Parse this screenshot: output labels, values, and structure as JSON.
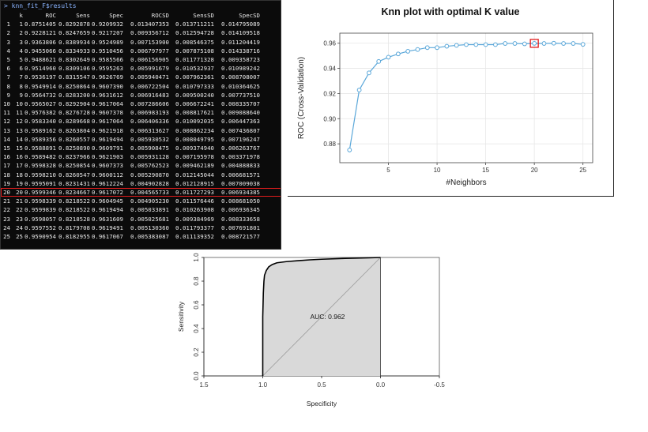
{
  "console": {
    "prompt": "> knn_fit_F$results",
    "columns": [
      "k",
      "ROC",
      "Sens",
      "Spec",
      "ROCSD",
      "SensSD",
      "SpecSD"
    ],
    "highlight_row": 20,
    "rows": [
      [
        "1",
        "1",
        "0.8751405",
        "0.8292878",
        "0.9209932",
        "0.013407353",
        "0.013711211",
        "0.014795089"
      ],
      [
        "2",
        "2",
        "0.9228121",
        "0.8247659",
        "0.9217207",
        "0.009356712",
        "0.012594728",
        "0.014109518"
      ],
      [
        "3",
        "3",
        "0.9363806",
        "0.8389934",
        "0.9524989",
        "0.007153900",
        "0.008546375",
        "0.011204419"
      ],
      [
        "4",
        "4",
        "0.9455066",
        "0.8334933",
        "0.9510456",
        "0.006797977",
        "0.007875108",
        "0.014338716"
      ],
      [
        "5",
        "5",
        "0.9488621",
        "0.8302649",
        "0.9585566",
        "0.006156905",
        "0.011771328",
        "0.009358723"
      ],
      [
        "6",
        "6",
        "0.9514960",
        "0.8309106",
        "0.9595263",
        "0.005991679",
        "0.010532937",
        "0.010989242"
      ],
      [
        "7",
        "7",
        "0.9536197",
        "0.8315547",
        "0.9626769",
        "0.005940471",
        "0.007962361",
        "0.008708007"
      ],
      [
        "8",
        "8",
        "0.9549914",
        "0.8250864",
        "0.9607390",
        "0.006722504",
        "0.010797333",
        "0.010364625"
      ],
      [
        "9",
        "9",
        "0.9564732",
        "0.8283200",
        "0.9631612",
        "0.006916483",
        "0.009500240",
        "0.007737510"
      ],
      [
        "10",
        "10",
        "0.9565027",
        "0.8292904",
        "0.9617064",
        "0.007286606",
        "0.006672241",
        "0.008335707"
      ],
      [
        "11",
        "11",
        "0.9576382",
        "0.8276728",
        "0.9607378",
        "0.006983193",
        "0.008817621",
        "0.009088640"
      ],
      [
        "12",
        "12",
        "0.9583340",
        "0.8289668",
        "0.9617064",
        "0.006406336",
        "0.010092035",
        "0.006447363"
      ],
      [
        "13",
        "13",
        "0.9589162",
        "0.8263804",
        "0.9621918",
        "0.006313627",
        "0.008862234",
        "0.007436807"
      ],
      [
        "14",
        "14",
        "0.9589356",
        "0.8260557",
        "0.9619494",
        "0.005930532",
        "0.008049795",
        "0.007196247"
      ],
      [
        "15",
        "15",
        "0.9588891",
        "0.8250890",
        "0.9609791",
        "0.005908475",
        "0.009374940",
        "0.006263767"
      ],
      [
        "16",
        "16",
        "0.9589482",
        "0.8237966",
        "0.9621903",
        "0.005931128",
        "0.007195978",
        "0.003371978"
      ],
      [
        "17",
        "17",
        "0.9598328",
        "0.8250854",
        "0.9607373",
        "0.005762523",
        "0.009462189",
        "0.004888833"
      ],
      [
        "18",
        "18",
        "0.9598210",
        "0.8260547",
        "0.9600112",
        "0.005290870",
        "0.012145044",
        "0.006681571"
      ],
      [
        "19",
        "19",
        "0.9595091",
        "0.8231431",
        "0.9612224",
        "0.004902828",
        "0.012128915",
        "0.007009038"
      ],
      [
        "20",
        "20",
        "0.9599346",
        "0.8234667",
        "0.9617072",
        "0.004565733",
        "0.011727293",
        "0.006934385"
      ],
      [
        "21",
        "21",
        "0.9598339",
        "0.8218522",
        "0.9604945",
        "0.004905230",
        "0.011576446",
        "0.008681050"
      ],
      [
        "22",
        "22",
        "0.9599839",
        "0.8218522",
        "0.9619494",
        "0.005033891",
        "0.010263908",
        "0.006936345"
      ],
      [
        "23",
        "23",
        "0.9598057",
        "0.8218528",
        "0.9631609",
        "0.005025681",
        "0.009384969",
        "0.008333658"
      ],
      [
        "24",
        "24",
        "0.9597552",
        "0.8179708",
        "0.9619491",
        "0.005130360",
        "0.011793377",
        "0.007691801"
      ],
      [
        "25",
        "25",
        "0.9590954",
        "0.8182955",
        "0.9617067",
        "0.005383087",
        "0.011139352",
        "0.008721577"
      ]
    ]
  },
  "chart_data": [
    {
      "type": "line",
      "title": "Knn plot with optimal K value",
      "xlabel": "#Neighbors",
      "ylabel": "ROC (Cross-Validation)",
      "xlim": [
        0,
        26
      ],
      "ylim": [
        0.865,
        0.968
      ],
      "xticks": [
        5,
        10,
        15,
        20,
        25
      ],
      "yticks": [
        0.88,
        0.9,
        0.92,
        0.94,
        0.96
      ],
      "grid": true,
      "highlight_x": 20,
      "x": [
        1,
        2,
        3,
        4,
        5,
        6,
        7,
        8,
        9,
        10,
        11,
        12,
        13,
        14,
        15,
        16,
        17,
        18,
        19,
        20,
        21,
        22,
        23,
        24,
        25
      ],
      "y": [
        0.8751,
        0.9228,
        0.9364,
        0.9455,
        0.9489,
        0.9515,
        0.9536,
        0.955,
        0.9565,
        0.9565,
        0.9576,
        0.9583,
        0.9589,
        0.9589,
        0.9589,
        0.9589,
        0.9598,
        0.9598,
        0.9595,
        0.9599,
        0.9598,
        0.96,
        0.9598,
        0.9598,
        0.9591
      ],
      "colors": {
        "line": "#5aa7d9",
        "highlight": "#e11d1d"
      }
    },
    {
      "type": "area",
      "xlabel": "Specificity",
      "ylabel": "Sensitivity",
      "xlim": [
        1.5,
        -0.5
      ],
      "ylim": [
        0,
        1
      ],
      "xticks": [
        "1.5",
        "1.0",
        "0.5",
        "0.0",
        "-0.5"
      ],
      "yticks": [
        "0.0",
        "0.2",
        "0.4",
        "0.6",
        "0.8",
        "1.0"
      ],
      "annotation": "AUC: 0.962",
      "diagonal": true,
      "specificity": [
        1.0,
        1.0,
        0.995,
        0.99,
        0.985,
        0.97,
        0.95,
        0.92,
        0.88,
        0.8,
        0.7,
        0.6,
        0.5,
        0.3,
        0.1,
        0.0
      ],
      "sensitivity": [
        0.0,
        0.5,
        0.7,
        0.8,
        0.85,
        0.89,
        0.92,
        0.94,
        0.955,
        0.965,
        0.973,
        0.98,
        0.985,
        0.992,
        0.997,
        1.0
      ],
      "colors": {
        "fill": "#d9d9d9",
        "curve": "#000000",
        "diagonal": "#9a9a9a"
      }
    }
  ]
}
